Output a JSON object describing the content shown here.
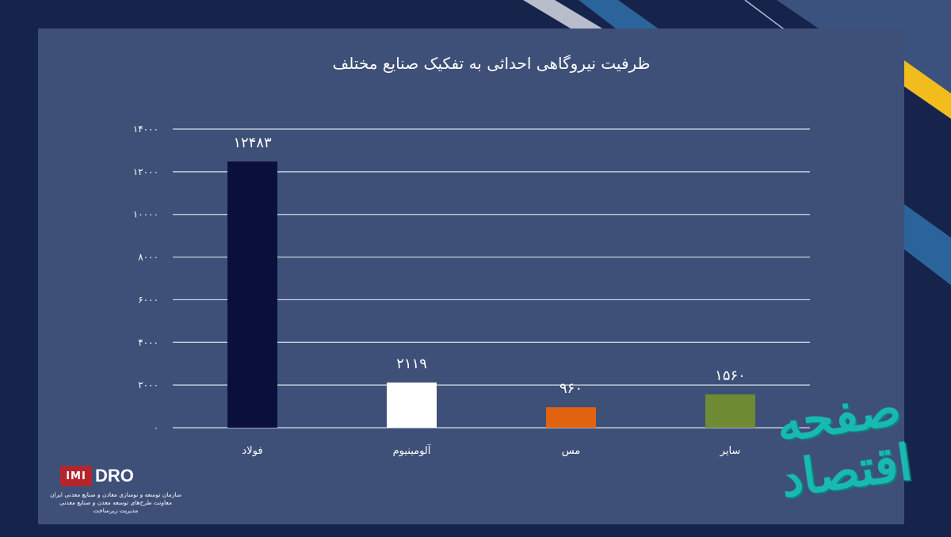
{
  "chart_data": {
    "type": "bar",
    "title": "ظرفیت نیروگاهی احداثی به تفکیک صنایع مختلف",
    "categories": [
      "فولاد",
      "آلومینیوم",
      "مس",
      "سایر"
    ],
    "values": [
      12483,
      2119,
      960,
      1560
    ],
    "value_labels": [
      "۱۲۴۸۳",
      "۲۱۱۹",
      "۹۶۰",
      "۱۵۶۰"
    ],
    "colors": [
      "#0a0f3c",
      "#ffffff",
      "#e2630f",
      "#6e8a33"
    ],
    "ylim": [
      0,
      14000
    ],
    "yticks": [
      0,
      2000,
      4000,
      6000,
      8000,
      10000,
      12000,
      14000
    ],
    "ytick_labels": [
      "۰",
      "۲۰۰۰",
      "۴۰۰۰",
      "۶۰۰۰",
      "۸۰۰۰",
      "۱۰۰۰۰",
      "۱۲۰۰۰",
      "۱۴۰۰۰"
    ],
    "grid": true,
    "xlabel": "",
    "ylabel": ""
  },
  "logo": {
    "mark": "IMI",
    "text": "DRO",
    "org_lines": [
      "سازمان توسعه و نوسازی معادن و صنایع معدنی ایران",
      "معاونت طرح‌های توسعه معدن و صنایع معدنی",
      "مدیریت زیرساخت"
    ]
  },
  "watermark": {
    "text": "صفحه اقتصاد"
  },
  "colors": {
    "background": "#16234a",
    "panel": "#3e5078",
    "accent_yellow": "#f2bd1c"
  }
}
